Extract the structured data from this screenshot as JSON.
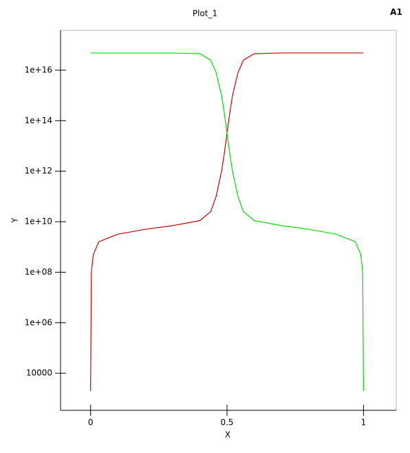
{
  "chart_data": {
    "type": "line",
    "title": "Plot_1",
    "corner_label": "A1",
    "xlabel": "X",
    "ylabel": "Y",
    "ylog": true,
    "xlim": [
      -0.11,
      1.12
    ],
    "xticks": [
      0,
      0.5,
      1
    ],
    "ylim": [
      340,
      3.8e+17
    ],
    "yticks": [
      {
        "value": 10000,
        "label": "10000"
      },
      {
        "value": 1000000.0,
        "label": "1e+06"
      },
      {
        "value": 100000000.0,
        "label": "1e+08"
      },
      {
        "value": 10000000000.0,
        "label": "1e+10"
      },
      {
        "value": 1000000000000.0,
        "label": "1e+12"
      },
      {
        "value": 100000000000000.0,
        "label": "1e+14"
      },
      {
        "value": 1e+16,
        "label": "1e+16"
      }
    ],
    "x": [
      0,
      0.003,
      0.01,
      0.03,
      0.1,
      0.2,
      0.3,
      0.4,
      0.44,
      0.46,
      0.48,
      0.49,
      0.5,
      0.51,
      0.52,
      0.54,
      0.56,
      0.6,
      0.7,
      0.8,
      0.9,
      0.97,
      0.99,
      0.997,
      1
    ],
    "series": [
      {
        "color": "#cc0000",
        "values": [
          2000,
          100000000.0,
          500000000.0,
          1600000000.0,
          3200000000.0,
          5000000000.0,
          7000000000.0,
          11000000000.0,
          25000000000.0,
          100000000000.0,
          1000000000000.0,
          5000000000000.0,
          32000000000000.0,
          200000000000000.0,
          1000000000000000.0,
          8000000000000000.0,
          2.5e+16,
          4.5e+16,
          4.8e+16,
          4.8e+16,
          4.8e+16,
          4.8e+16,
          4.8e+16,
          4.8e+16,
          4.8e+16
        ]
      },
      {
        "color": "#00dd00",
        "values": [
          4.8e+16,
          4.8e+16,
          4.8e+16,
          4.8e+16,
          4.8e+16,
          4.8e+16,
          4.8e+16,
          4.5e+16,
          2.5e+16,
          8000000000000000.0,
          1000000000000000.0,
          200000000000000.0,
          32000000000000.0,
          5000000000000.0,
          1000000000000.0,
          100000000000.0,
          25000000000.0,
          11000000000.0,
          7000000000.0,
          5000000000.0,
          3200000000.0,
          1600000000.0,
          500000000.0,
          100000000.0,
          2000
        ]
      }
    ]
  }
}
